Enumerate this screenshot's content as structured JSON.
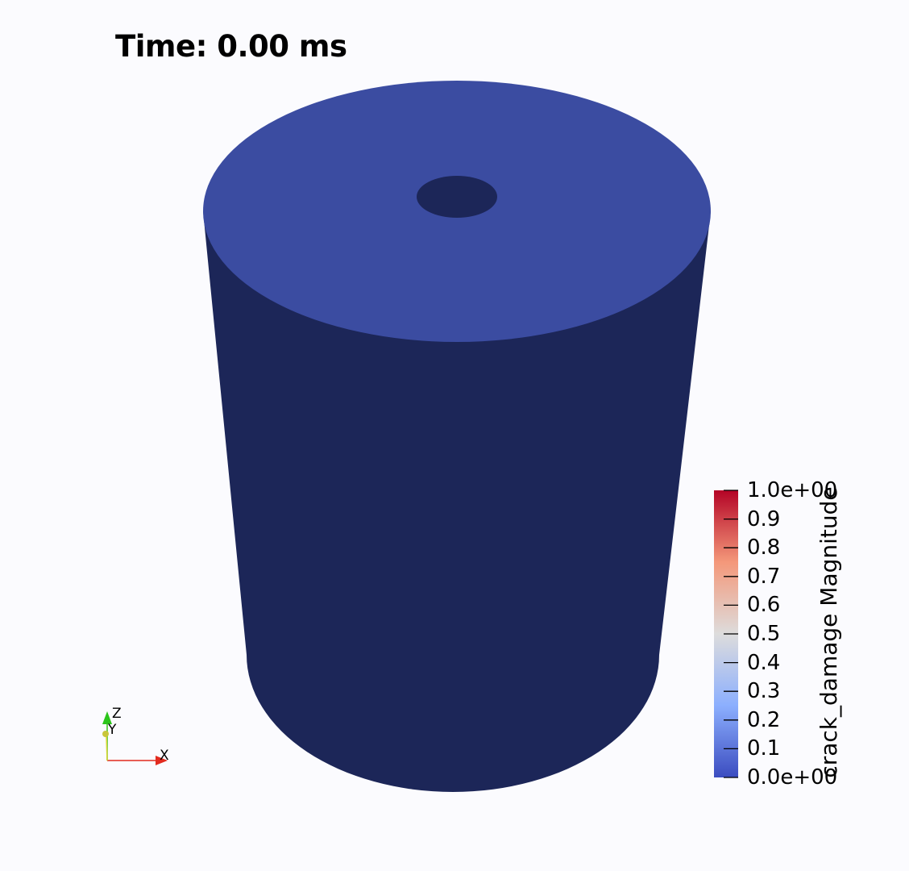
{
  "time_annotation": "Time: 0.00 ms",
  "scalar_bar": {
    "title": "crack_damage Magnitude",
    "colormap": "Cool to Warm",
    "range": [
      0.0,
      1.0
    ],
    "tick_labels": [
      "1.0e+00",
      "0.9",
      "0.8",
      "0.7",
      "0.6",
      "0.5",
      "0.4",
      "0.3",
      "0.2",
      "0.1",
      "0.0e+00"
    ]
  },
  "orientation_axes": {
    "x": "X",
    "y": "Y",
    "z": "Z"
  },
  "colors": {
    "background": "#fbfbfe",
    "cylinder_top": "#3b4ca1",
    "cylinder_side": "#1c2658",
    "hole": "#1c2658",
    "colormap_low": "#3b4cc0",
    "colormap_mid": "#dddddd",
    "colormap_high": "#b40426"
  }
}
